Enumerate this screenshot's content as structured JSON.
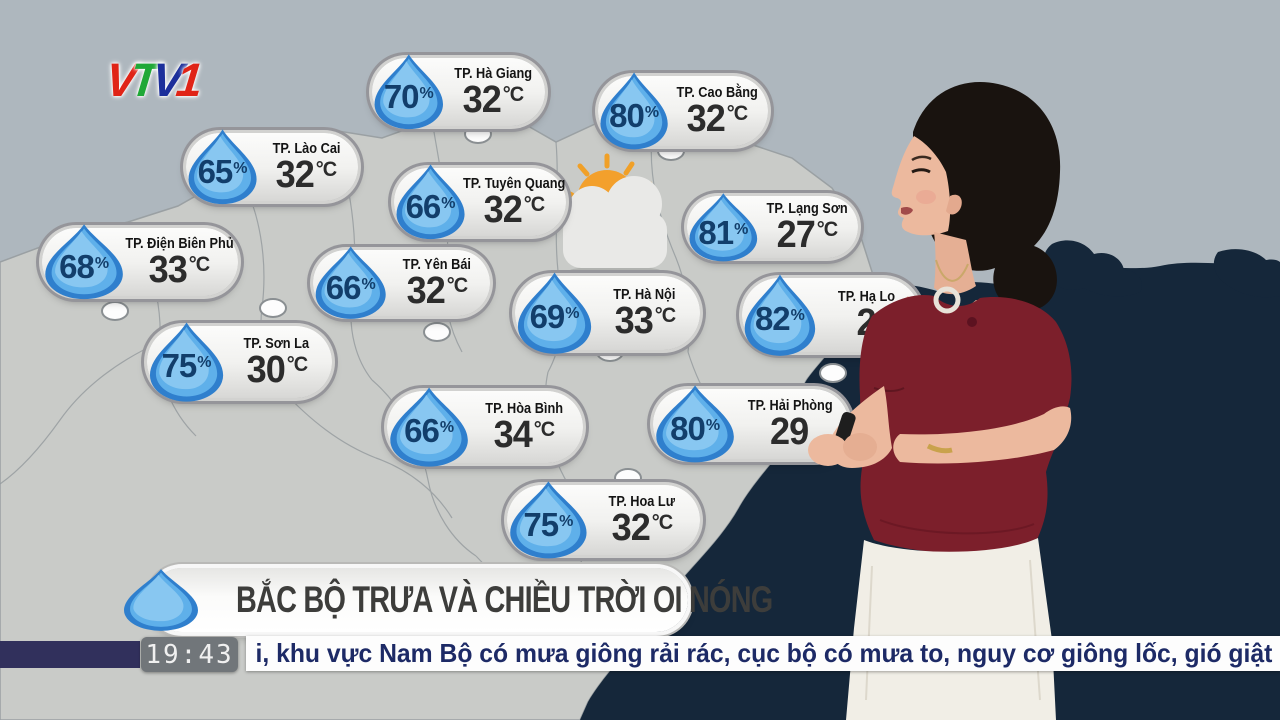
{
  "channel": {
    "logo_letters": [
      "V",
      "T",
      "V",
      "1"
    ],
    "logo_colors": {
      "red": "#e02417",
      "green": "#1fa837",
      "blue": "#1c2f9b"
    }
  },
  "labels": {
    "percent": "%"
  },
  "map": {
    "region": "northern-vietnam",
    "weather_icon": "sun-behind-cloud",
    "stations": [
      {
        "city": "TP. Hà Giang",
        "humidity": "70",
        "temp": "32",
        "unit": "°C"
      },
      {
        "city": "TP. Cao Bằng",
        "humidity": "80",
        "temp": "32",
        "unit": "°C"
      },
      {
        "city": "TP. Lào Cai",
        "humidity": "65",
        "temp": "32",
        "unit": "°C"
      },
      {
        "city": "TP. Tuyên Quang",
        "humidity": "66",
        "temp": "32",
        "unit": "°C"
      },
      {
        "city": "TP. Lạng Sơn",
        "humidity": "81",
        "temp": "27",
        "unit": "°C"
      },
      {
        "city": "TP. Điện Biên Phủ",
        "humidity": "68",
        "temp": "33",
        "unit": "°C"
      },
      {
        "city": "TP. Yên Bái",
        "humidity": "66",
        "temp": "32",
        "unit": "°C"
      },
      {
        "city": "TP. Hà Nội",
        "humidity": "69",
        "temp": "33",
        "unit": "°C"
      },
      {
        "city": "TP. Hạ Lo",
        "humidity": "82",
        "temp": "2",
        "unit": ""
      },
      {
        "city": "TP. Sơn La",
        "humidity": "75",
        "temp": "30",
        "unit": "°C"
      },
      {
        "city": "TP. Hòa Bình",
        "humidity": "66",
        "temp": "34",
        "unit": "°C"
      },
      {
        "city": "TP. Hải Phòng",
        "humidity": "80",
        "temp": "29",
        "unit": ""
      },
      {
        "city": "TP. Hoa Lư",
        "humidity": "75",
        "temp": "32",
        "unit": "°C"
      }
    ]
  },
  "banner": {
    "icon": "water-drop-icon",
    "text": "BẮC BỘ TRƯA VÀ CHIỀU TRỜI OI NÓNG"
  },
  "ticker": {
    "time": "19:43",
    "text": "i, khu vực Nam Bộ có mưa giông rải rác, cục bộ có mưa to, nguy cơ giông lốc, gió giật"
  },
  "colors": {
    "background": "#aeb7be",
    "land": "#c9cbc8",
    "sea": "#15273a",
    "drop_blue": "#2f7fcd",
    "humidity_text": "#123e6b",
    "ticker_navy": "#31305c",
    "ticker_text": "#1d2a66"
  }
}
